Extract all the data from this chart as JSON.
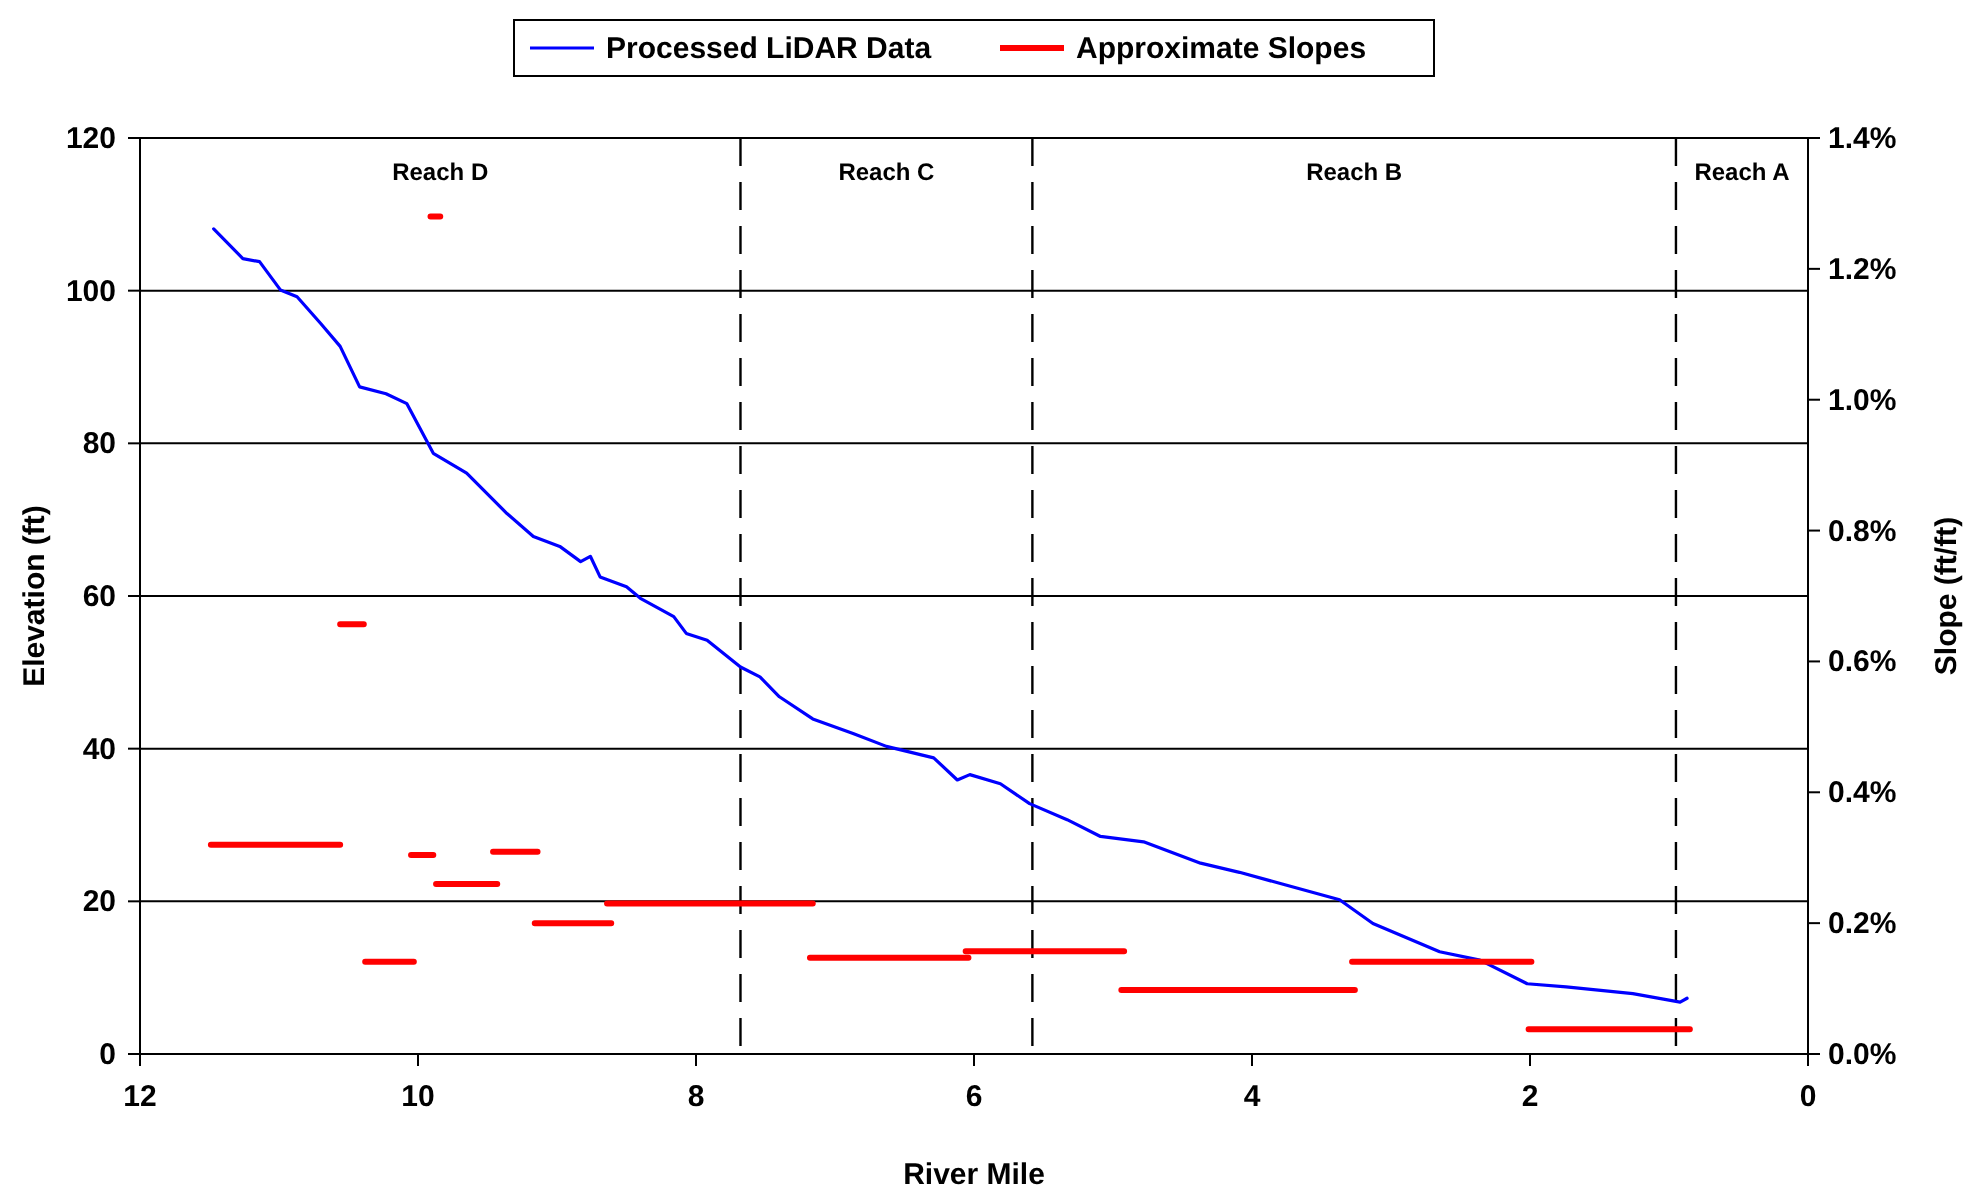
{
  "chart_data": {
    "type": "line",
    "xlabel": "River Mile",
    "ylabel": "Elevation (ft)",
    "y2label": "Slope (ft/ft)",
    "xlim": [
      12,
      0
    ],
    "xticks": [
      12,
      10,
      8,
      6,
      4,
      2,
      0
    ],
    "ylim": [
      0,
      120
    ],
    "yticks": [
      0,
      20,
      40,
      60,
      80,
      100,
      120
    ],
    "y2lim": [
      0,
      1.4
    ],
    "y2ticks": [
      {
        "value": 0,
        "label": "0.0%"
      },
      {
        "value": 0.2,
        "label": "0.2%"
      },
      {
        "value": 0.4,
        "label": "0.4%"
      },
      {
        "value": 0.6,
        "label": "0.6%"
      },
      {
        "value": 0.8,
        "label": "0.8%"
      },
      {
        "value": 1.0,
        "label": "1.0%"
      },
      {
        "value": 1.2,
        "label": "1.2%"
      },
      {
        "value": 1.4,
        "label": "1.4%"
      }
    ],
    "grid": "y",
    "legend": "top",
    "line_style": "solid",
    "marker": "none",
    "series": [
      {
        "name": "Processed LiDAR Data",
        "color": "#0000ff",
        "x": [
          11.47,
          11.26,
          11.14,
          10.99,
          10.87,
          10.7,
          10.56,
          10.42,
          10.23,
          10.08,
          9.89,
          9.65,
          9.36,
          9.17,
          8.98,
          8.83,
          8.76,
          8.69,
          8.5,
          8.4,
          8.16,
          8.07,
          7.92,
          7.68,
          7.54,
          7.4,
          7.16,
          6.87,
          6.63,
          6.29,
          6.12,
          6.03,
          5.81,
          5.6,
          5.33,
          5.09,
          4.78,
          4.37,
          4.09,
          3.75,
          3.37,
          3.13,
          2.65,
          2.36,
          2.02,
          1.74,
          1.26,
          0.92,
          0.87
        ],
        "values": [
          108.1,
          104.2,
          103.8,
          100.1,
          99.2,
          95.7,
          92.7,
          87.4,
          86.5,
          85.2,
          78.7,
          76.1,
          70.8,
          67.8,
          66.5,
          64.5,
          65.2,
          62.5,
          61.2,
          59.7,
          57.3,
          55.1,
          54.2,
          50.7,
          49.4,
          46.8,
          43.9,
          42.0,
          40.3,
          38.8,
          35.9,
          36.6,
          35.4,
          32.8,
          30.7,
          28.5,
          27.8,
          25.0,
          23.8,
          22.1,
          20.2,
          17.1,
          13.4,
          12.3,
          9.2,
          8.8,
          7.9,
          6.8,
          7.3
        ]
      },
      {
        "name": "Approximate Slopes",
        "color": "#ff0000",
        "axis": "y2",
        "x": [
          11.49,
          10.56,
          null,
          10.56,
          10.39,
          null,
          10.38,
          10.03,
          null,
          10.05,
          9.89,
          null,
          9.91,
          9.84,
          null,
          9.87,
          9.43,
          null,
          9.46,
          9.14,
          null,
          9.16,
          8.61,
          null,
          8.64,
          7.16,
          null,
          7.18,
          6.04,
          null,
          6.06,
          4.92,
          null,
          4.94,
          3.26,
          null,
          3.28,
          1.99,
          null,
          2.01,
          0.85
        ],
        "values": [
          0.32,
          0.32,
          null,
          0.657,
          0.657,
          null,
          0.141,
          0.141,
          null,
          0.304,
          0.304,
          null,
          1.28,
          1.28,
          null,
          0.26,
          0.26,
          null,
          0.309,
          0.309,
          null,
          0.2,
          0.2,
          null,
          0.23,
          0.23,
          null,
          0.147,
          0.147,
          null,
          0.157,
          0.157,
          null,
          0.098,
          0.098,
          null,
          0.141,
          0.141,
          null,
          0.038,
          0.038
        ]
      }
    ],
    "ref_lines": [
      {
        "axis": "x",
        "value": 7.68,
        "color": "#000000",
        "line_style": "dashed"
      },
      {
        "axis": "x",
        "value": 5.58,
        "color": "#000000",
        "line_style": "dashed"
      },
      {
        "axis": "x",
        "value": 0.95,
        "color": "#000000",
        "line_style": "dashed"
      }
    ],
    "annotations": [
      "Reach D",
      "Reach C",
      "Reach B",
      "Reach A"
    ]
  }
}
